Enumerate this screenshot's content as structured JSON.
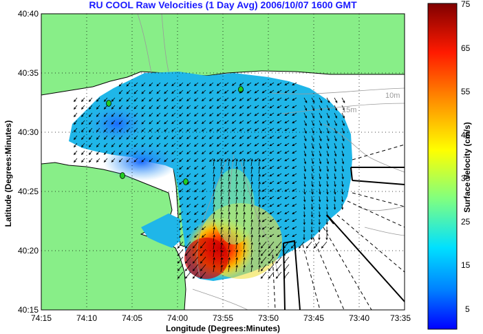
{
  "title": "RU COOL Raw Velocities (1 Day Avg) 2006/10/07 1600 GMT",
  "map": {
    "xlabel": "Longitude (Degrees:Minutes)",
    "ylabel": "Latitude (Degrees:Minutes)",
    "x_ticks": [
      "74:15",
      "74:10",
      "74:05",
      "74:00",
      "73:55",
      "73:50",
      "73:45",
      "73:40",
      "73:35"
    ],
    "y_ticks": [
      "40:40",
      "40:35",
      "40:30",
      "40:25",
      "40:20",
      "40:15"
    ],
    "depth_labels": [
      "10m",
      "15m"
    ]
  },
  "colorbar": {
    "label": "Surface Velocity (cm/s)",
    "ticks": [
      75,
      65,
      55,
      45,
      35,
      25,
      15,
      5
    ],
    "range": [
      0,
      75
    ]
  },
  "colors": {
    "land": "#88ee88",
    "title": "#1a1aff"
  }
}
